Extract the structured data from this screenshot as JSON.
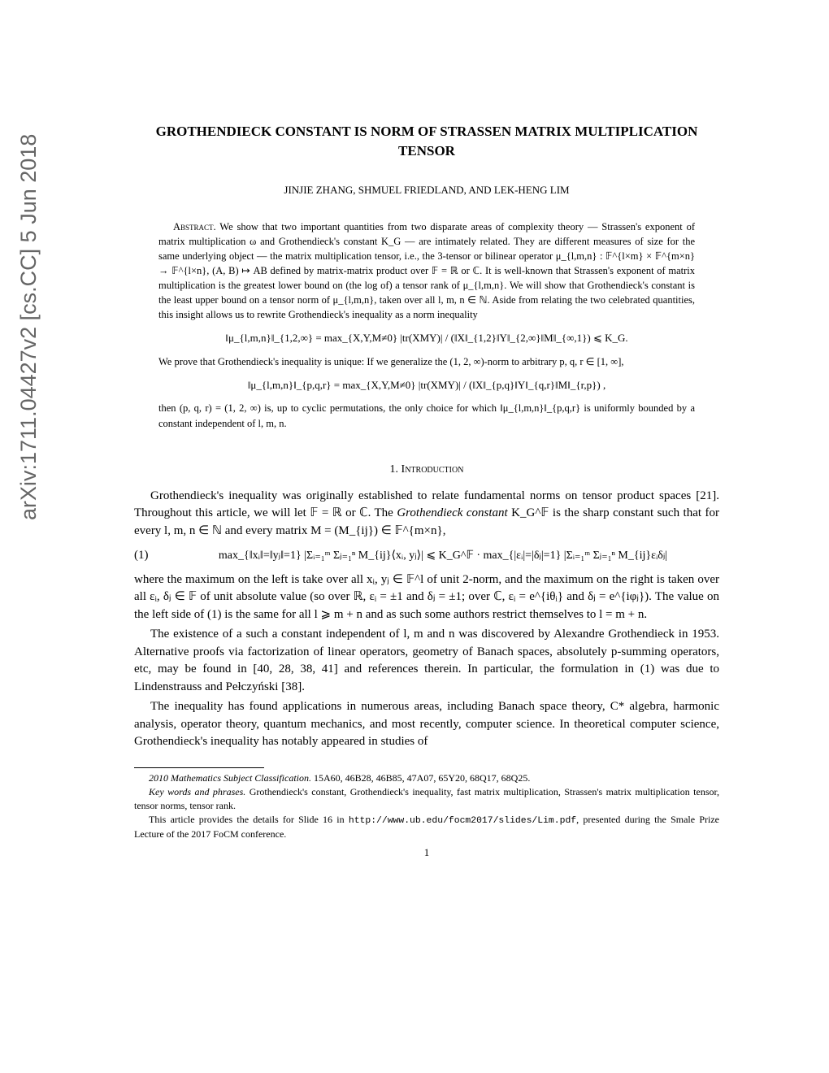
{
  "arxiv_sidebar": "arXiv:1711.04427v2  [cs.CC]  5 Jun 2018",
  "title": "GROTHENDIECK CONSTANT IS NORM OF STRASSEN MATRIX MULTIPLICATION TENSOR",
  "authors": "JINJIE ZHANG, SHMUEL FRIEDLAND, AND LEK-HENG LIM",
  "abstract": {
    "label": "Abstract.",
    "text": "We show that two important quantities from two disparate areas of complexity theory — Strassen's exponent of matrix multiplication ω and Grothendieck's constant K_G — are intimately related. They are different measures of size for the same underlying object — the matrix multiplication tensor, i.e., the 3-tensor or bilinear operator μ_{l,m,n} : 𝔽^{l×m} × 𝔽^{m×n} → 𝔽^{l×n}, (A, B) ↦ AB defined by matrix-matrix product over 𝔽 = ℝ or ℂ. It is well-known that Strassen's exponent of matrix multiplication is the greatest lower bound on (the log of) a tensor rank of μ_{l,m,n}. We will show that Grothendieck's constant is the least upper bound on a tensor norm of μ_{l,m,n}, taken over all l, m, n ∈ ℕ. Aside from relating the two celebrated quantities, this insight allows us to rewrite Grothendieck's inequality as a norm inequality",
    "eq1": "‖μ_{l,m,n}‖_{1,2,∞} = max_{X,Y,M≠0} |tr(XMY)| / (‖X‖_{1,2}‖Y‖_{2,∞}‖M‖_{∞,1}) ⩽ K_G.",
    "text2": "We prove that Grothendieck's inequality is unique: If we generalize the (1, 2, ∞)-norm to arbitrary p, q, r ∈ [1, ∞],",
    "eq2": "‖μ_{l,m,n}‖_{p,q,r} = max_{X,Y,M≠0} |tr(XMY)| / (‖X‖_{p,q}‖Y‖_{q,r}‖M‖_{r,p}) ,",
    "text3": "then (p, q, r) = (1, 2, ∞) is, up to cyclic permutations, the only choice for which ‖μ_{l,m,n}‖_{p,q,r} is uniformly bounded by a constant independent of l, m, n."
  },
  "section": {
    "number": "1.",
    "name": "Introduction"
  },
  "body": {
    "p1a": "Grothendieck's inequality was originally established to relate fundamental norms on tensor product spaces [21]. Throughout this article, we will let 𝔽 = ℝ or ℂ. The ",
    "p1b_ital": "Grothendieck constant",
    "p1c": " K_G^𝔽 is the sharp constant such that for every l, m, n ∈ ℕ and every matrix M = (M_{ij}) ∈ 𝔽^{m×n},",
    "eq1_num": "(1)",
    "eq1": "max_{‖xᵢ‖=‖yⱼ‖=1} |Σᵢ₌₁ᵐ Σⱼ₌₁ⁿ M_{ij}⟨xᵢ, yⱼ⟩| ⩽ K_G^𝔽 · max_{|εᵢ|=|δⱼ|=1} |Σᵢ₌₁ᵐ Σⱼ₌₁ⁿ M_{ij}εᵢδⱼ|",
    "p2": "where the maximum on the left is take over all xᵢ, yⱼ ∈ 𝔽^l of unit 2-norm, and the maximum on the right is taken over all εᵢ, δⱼ ∈ 𝔽 of unit absolute value (so over ℝ, εᵢ = ±1 and δⱼ = ±1; over ℂ, εᵢ = e^{iθᵢ} and δⱼ = e^{iφⱼ}). The value on the left side of (1) is the same for all l ⩾ m + n and as such some authors restrict themselves to l = m + n.",
    "p3": "The existence of a such a constant independent of l, m and n was discovered by Alexandre Grothendieck in 1953. Alternative proofs via factorization of linear operators, geometry of Banach spaces, absolutely p-summing operators, etc, may be found in [40, 28, 38, 41] and references therein. In particular, the formulation in (1) was due to Lindenstrauss and Pełczyński [38].",
    "p4": "The inequality has found applications in numerous areas, including Banach space theory, C* algebra, harmonic analysis, operator theory, quantum mechanics, and most recently, computer science. In theoretical computer science, Grothendieck's inequality has notably appeared in studies of"
  },
  "footnotes": {
    "f1_label": "2010 Mathematics Subject Classification.",
    "f1_text": " 15A60, 46B28, 46B85, 47A07, 65Y20, 68Q17, 68Q25.",
    "f2_label": "Key words and phrases.",
    "f2_text": " Grothendieck's constant, Grothendieck's inequality, fast matrix multiplication, Strassen's matrix multiplication tensor, tensor norms, tensor rank.",
    "f3a": "This article provides the details for Slide 16 in ",
    "f3_url": "http://www.ub.edu/focm2017/slides/Lim.pdf",
    "f3b": ", presented during the Smale Prize Lecture of the 2017 FoCM conference."
  },
  "pagenum": "1"
}
